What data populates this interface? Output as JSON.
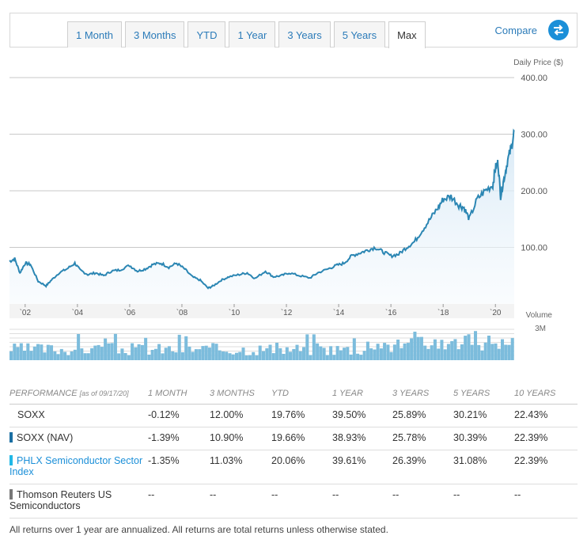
{
  "tabs": [
    "1 Month",
    "3 Months",
    "YTD",
    "1 Year",
    "3 Years",
    "5 Years",
    "Max"
  ],
  "active_tab": "Max",
  "compare_label": "Compare",
  "colors": {
    "price_line": "#2b86b3",
    "volume": "#7cbcdc",
    "accent": "#1b8fd8",
    "nav": "#1b6fa3",
    "index": "#21b8e6",
    "tr": "#777777"
  },
  "chart_data": [
    {
      "type": "line",
      "ylabel": "Daily Price ($)",
      "ylim": [
        0,
        400
      ],
      "yticks": [
        "100.00",
        "200.00",
        "300.00",
        "400.00"
      ],
      "xlim": [
        2001.4,
        2020.72
      ],
      "xticks": [
        {
          "year": 2002,
          "label": "`02"
        },
        {
          "year": 2004,
          "label": "`04"
        },
        {
          "year": 2006,
          "label": "`06"
        },
        {
          "year": 2008,
          "label": "`08"
        },
        {
          "year": 2010,
          "label": "`10"
        },
        {
          "year": 2012,
          "label": "`12"
        },
        {
          "year": 2014,
          "label": "`14"
        },
        {
          "year": 2016,
          "label": "`16"
        },
        {
          "year": 2018,
          "label": "`18"
        },
        {
          "year": 2020,
          "label": "`20"
        }
      ],
      "series": [
        {
          "x": [
            2001.4,
            2001.6,
            2001.8,
            2002.0,
            2002.2,
            2002.5,
            2002.8,
            2003.0,
            2003.3,
            2003.6,
            2003.9,
            2004.1,
            2004.4,
            2004.7,
            2005.0,
            2005.3,
            2005.6,
            2006.0,
            2006.3,
            2006.6,
            2006.9,
            2007.2,
            2007.5,
            2007.8,
            2008.1,
            2008.4,
            2008.7,
            2009.0,
            2009.2,
            2009.5,
            2009.8,
            2010.2,
            2010.5,
            2010.8,
            2011.2,
            2011.5,
            2011.8,
            2012.1,
            2012.5,
            2012.9,
            2013.2,
            2013.6,
            2013.9,
            2014.2,
            2014.5,
            2014.8,
            2015.1,
            2015.4,
            2015.7,
            2016.0,
            2016.3,
            2016.6,
            2016.9,
            2017.2,
            2017.5,
            2017.8,
            2018.0,
            2018.3,
            2018.6,
            2018.8,
            2019.0,
            2019.3,
            2019.6,
            2019.9,
            2020.0,
            2020.1,
            2020.2,
            2020.3,
            2020.45,
            2020.6,
            2020.72
          ],
          "y": [
            75,
            80,
            55,
            72,
            70,
            40,
            32,
            42,
            55,
            62,
            72,
            60,
            52,
            55,
            50,
            58,
            60,
            68,
            58,
            62,
            70,
            72,
            65,
            72,
            62,
            48,
            42,
            28,
            32,
            42,
            48,
            52,
            55,
            45,
            58,
            48,
            50,
            55,
            50,
            46,
            55,
            62,
            68,
            72,
            85,
            90,
            95,
            100,
            92,
            85,
            88,
            100,
            110,
            130,
            150,
            170,
            185,
            190,
            175,
            170,
            150,
            185,
            200,
            210,
            240,
            250,
            190,
            215,
            250,
            275,
            305
          ]
        }
      ]
    },
    {
      "type": "bar",
      "title": "Volume",
      "yticks": [
        "3M"
      ]
    }
  ],
  "table": {
    "headers": [
      "PERFORMANCE",
      "[as of 09/17/20]",
      "1 MONTH",
      "3 MONTHS",
      "YTD",
      "1 YEAR",
      "3 YEARS",
      "5 YEARS",
      "10 YEARS"
    ],
    "rows": [
      {
        "name": "SOXX",
        "values": [
          "-0.12%",
          "12.00%",
          "19.76%",
          "39.50%",
          "25.89%",
          "30.21%",
          "22.43%"
        ]
      },
      {
        "name": "SOXX (NAV)",
        "values": [
          "-1.39%",
          "10.90%",
          "19.66%",
          "38.93%",
          "25.78%",
          "30.39%",
          "22.39%"
        ]
      },
      {
        "name": "PHLX Semiconductor Sector Index",
        "values": [
          "-1.35%",
          "11.03%",
          "20.06%",
          "39.61%",
          "26.39%",
          "31.08%",
          "22.39%"
        ]
      },
      {
        "name": "Thomson Reuters US Semiconductors",
        "values": [
          "--",
          "--",
          "--",
          "--",
          "--",
          "--",
          "--"
        ]
      }
    ]
  },
  "footnote": "All returns over 1 year are annualized. All returns are total returns unless otherwise stated."
}
